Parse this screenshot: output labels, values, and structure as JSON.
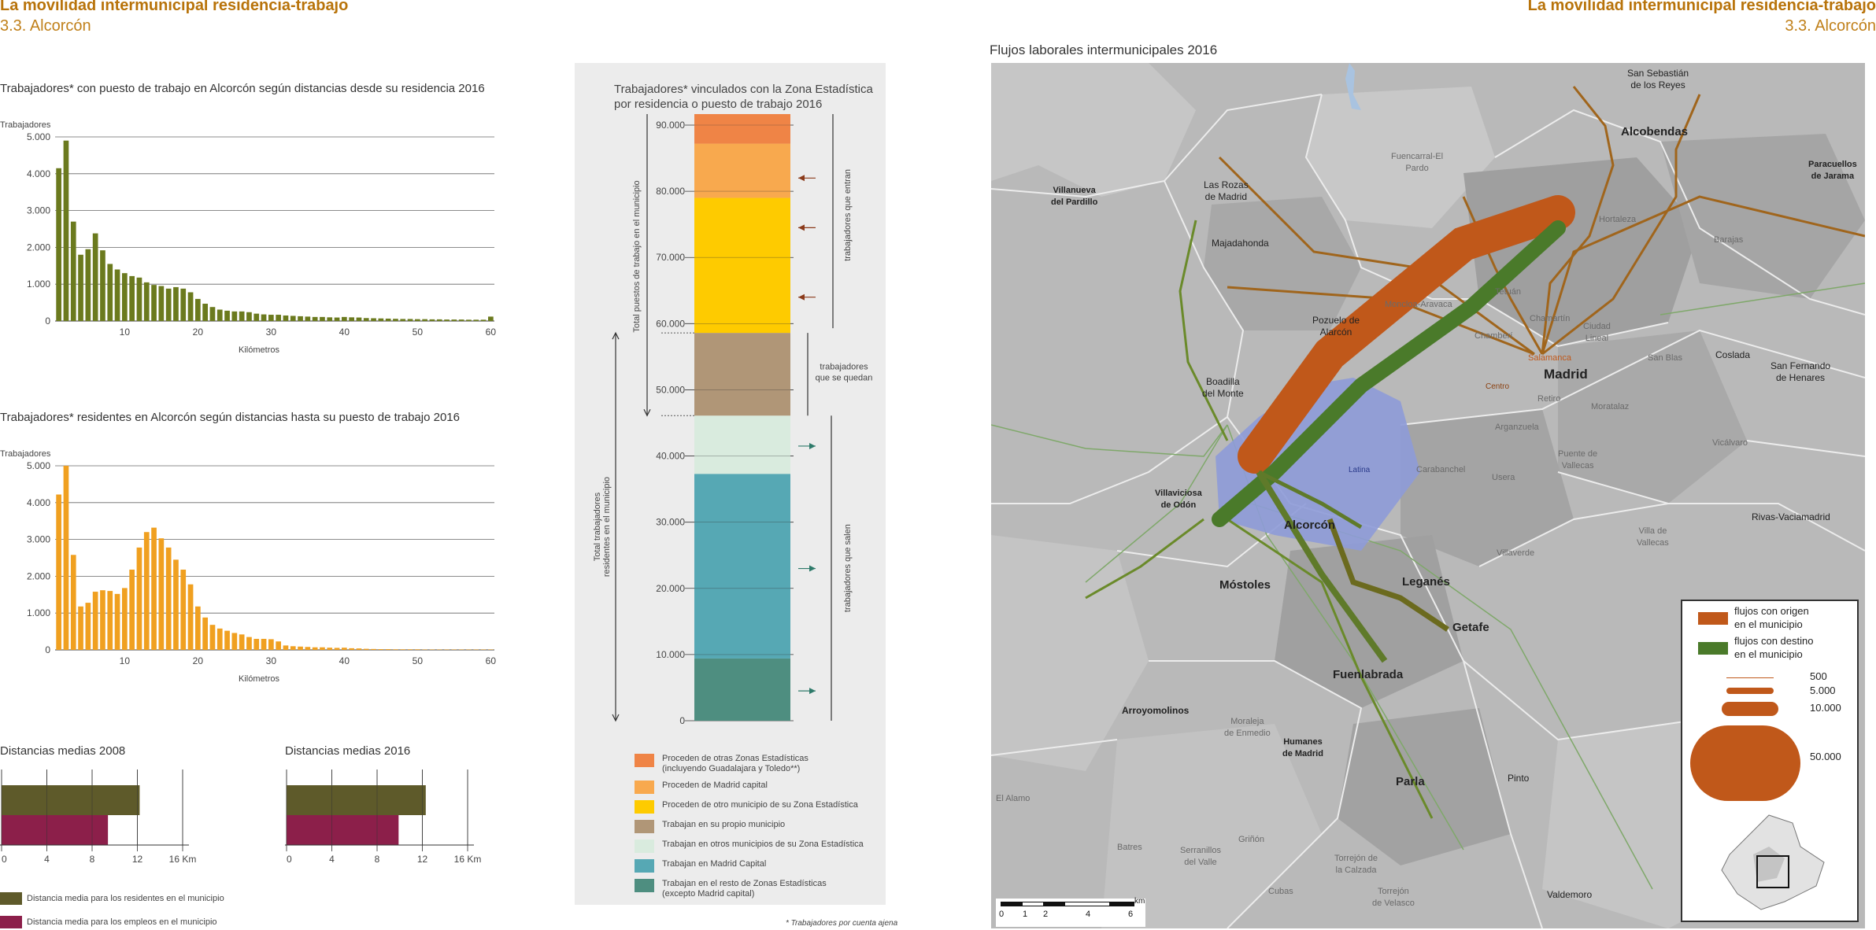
{
  "header": {
    "left_title": "La movilidad intermunicipal residencia-trabajo",
    "left_subtitle": "3.3. Alcorcón",
    "right_title": "La movilidad intermunicipal residencia-trabajo",
    "right_subtitle": "3.3. Alcorcón"
  },
  "colors": {
    "olive": "#6b7a1e",
    "orange": "#f0a020",
    "olive_dark": "#5e5a2a",
    "crimson": "#8c1f4a",
    "flow_origin": "#c0581a",
    "flow_dest": "#4a7a2a"
  },
  "chart_data": [
    {
      "type": "bar",
      "title": "Trabajadores* con puesto de trabajo en Alcorcón según distancias desde su residencia 2016",
      "ylabel": "Trabajadores",
      "xlabel": "Kilómetros",
      "ylim": [
        0,
        5000
      ],
      "yticks": [
        "0",
        "1.000",
        "2.000",
        "3.000",
        "4.000",
        "5.000"
      ],
      "xticks": [
        "10",
        "20",
        "30",
        "40",
        "50",
        "60"
      ],
      "x": [
        1,
        2,
        3,
        4,
        5,
        6,
        7,
        8,
        9,
        10,
        11,
        12,
        13,
        14,
        15,
        16,
        17,
        18,
        19,
        20,
        21,
        22,
        23,
        24,
        25,
        26,
        27,
        28,
        29,
        30,
        31,
        32,
        33,
        34,
        35,
        36,
        37,
        38,
        39,
        40,
        41,
        42,
        43,
        44,
        45,
        46,
        47,
        48,
        49,
        50,
        51,
        52,
        53,
        54,
        55,
        56,
        57,
        58,
        59,
        60
      ],
      "values": [
        4150,
        4900,
        2700,
        1800,
        1950,
        2380,
        1920,
        1550,
        1400,
        1300,
        1220,
        1180,
        1050,
        980,
        950,
        880,
        920,
        880,
        780,
        600,
        470,
        380,
        310,
        280,
        260,
        260,
        240,
        200,
        180,
        170,
        170,
        150,
        140,
        130,
        120,
        110,
        110,
        100,
        95,
        110,
        100,
        95,
        80,
        75,
        70,
        65,
        60,
        55,
        55,
        50,
        50,
        45,
        45,
        40,
        40,
        40,
        35,
        35,
        35,
        120
      ],
      "color": "#6b7a1e"
    },
    {
      "type": "bar",
      "title": "Trabajadores* residentes en Alcorcón según distancias hasta su puesto de trabajo 2016",
      "ylabel": "Trabajadores",
      "xlabel": "Kilómetros",
      "ylim": [
        0,
        5000
      ],
      "yticks": [
        "0",
        "1.000",
        "2.000",
        "3.000",
        "4.000",
        "5.000"
      ],
      "xticks": [
        "10",
        "20",
        "30",
        "40",
        "50",
        "60"
      ],
      "x": [
        1,
        2,
        3,
        4,
        5,
        6,
        7,
        8,
        9,
        10,
        11,
        12,
        13,
        14,
        15,
        16,
        17,
        18,
        19,
        20,
        21,
        22,
        23,
        24,
        25,
        26,
        27,
        28,
        29,
        30,
        31,
        32,
        33,
        34,
        35,
        36,
        37,
        38,
        39,
        40,
        41,
        42,
        43,
        44,
        45,
        46,
        47,
        48,
        49,
        50,
        51,
        52,
        53,
        54,
        55,
        56,
        57,
        58,
        59,
        60
      ],
      "values": [
        4220,
        5000,
        2580,
        1180,
        1280,
        1580,
        1620,
        1600,
        1520,
        1680,
        2180,
        2780,
        3200,
        3320,
        3030,
        2780,
        2450,
        2180,
        1780,
        1180,
        880,
        680,
        580,
        520,
        460,
        420,
        350,
        300,
        300,
        290,
        230,
        120,
        100,
        90,
        80,
        70,
        70,
        60,
        55,
        60,
        45,
        40,
        30,
        25,
        20,
        20,
        15,
        15,
        15,
        15,
        10,
        10,
        10,
        10,
        10,
        10,
        10,
        10,
        10,
        10
      ],
      "color": "#f0a020"
    },
    {
      "type": "bar",
      "title": "Distancias medias 2008",
      "orientation": "horizontal",
      "xlim": [
        0,
        16
      ],
      "xticks": [
        "0",
        "4",
        "8",
        "12",
        "16 Km"
      ],
      "series": [
        {
          "name": "Distancia media para los residentes en el municipio",
          "value": 12.2,
          "color": "#5e5a2a"
        },
        {
          "name": "Distancia media para los empleos en el municipio",
          "value": 9.4,
          "color": "#8c1f4a"
        }
      ]
    },
    {
      "type": "bar",
      "title": "Distancias medias 2016",
      "orientation": "horizontal",
      "xlim": [
        0,
        16
      ],
      "xticks": [
        "0",
        "4",
        "8",
        "12",
        "16 Km"
      ],
      "series": [
        {
          "name": "Distancia media para los residentes en el municipio",
          "value": 12.3,
          "color": "#5e5a2a"
        },
        {
          "name": "Distancia media para los empleos en el municipio",
          "value": 9.9,
          "color": "#8c1f4a"
        }
      ]
    },
    {
      "type": "bar",
      "stacked": true,
      "title": "Trabajadores* vinculados con la Zona Estadística por residencia o puesto de trabajo 2016",
      "ylim": [
        0,
        90000
      ],
      "yticks": [
        "0",
        "10.000",
        "20.000",
        "30.000",
        "40.000",
        "50.000",
        "60.000",
        "70.000",
        "80.000",
        "90.000"
      ],
      "segments": [
        {
          "name": "Trabajan en el resto de Zonas Estadísticas (excepto Madrid capital)",
          "value": 9400,
          "color": "#4e8e80"
        },
        {
          "name": "Trabajan en Madrid Capital",
          "value": 27900,
          "color": "#56a8b4"
        },
        {
          "name": "Trabajan en otros municipios de su Zona Estadística",
          "value": 8800,
          "color": "#d9ebde"
        },
        {
          "name": "Trabajan en su propio municipio",
          "value": 12500,
          "color": "#b09677"
        },
        {
          "name": "Proceden de otro municipio de su Zona Estadística",
          "value": 20400,
          "color": "#fecb00"
        },
        {
          "name": "Proceden de Madrid capital",
          "value": 8200,
          "color": "#f8a94e"
        },
        {
          "name": "Proceden de otras Zonas Estadísticas (incluyendo Guadalajara y Toledo**)",
          "value": 7000,
          "color": "#ef8446"
        }
      ]
    }
  ],
  "distances_legend": {
    "residents": "Distancia media para los residentes en el municipio",
    "jobs": "Distancia media para los empleos en el municipio"
  },
  "stack_panel": {
    "title_line1": "Trabajadores* vinculados con la Zona Estadística",
    "title_line2": "por residencia o puesto de trabajo 2016",
    "label_total_jobs": "Total puestos de trabajo en el municipio",
    "label_total_residents_1": "Total trabajadores",
    "label_total_residents_2": "residentes en el municipio",
    "label_enter": "trabajadores que entran",
    "label_stay_1": "trabajadores",
    "label_stay_2": "que se quedan",
    "label_exit": "trabajadores que salen",
    "legend": [
      {
        "text_1": "Proceden de otras Zonas Estadísticas",
        "text_2": "(incluyendo Guadalajara y Toledo**)",
        "color": "#ef8446"
      },
      {
        "text_1": "Proceden de Madrid capital",
        "text_2": "",
        "color": "#f8a94e"
      },
      {
        "text_1": "Proceden de otro municipio de su Zona Estadística",
        "text_2": "",
        "color": "#fecb00"
      },
      {
        "text_1": "Trabajan en su propio municipio",
        "text_2": "",
        "color": "#b09677"
      },
      {
        "text_1": "Trabajan en otros municipios de su Zona Estadística",
        "text_2": "",
        "color": "#d9ebde"
      },
      {
        "text_1": "Trabajan en Madrid Capital",
        "text_2": "",
        "color": "#56a8b4"
      },
      {
        "text_1": "Trabajan en el resto de Zonas Estadísticas",
        "text_2": "(excepto Madrid capital)",
        "color": "#4e8e80"
      }
    ],
    "footnote": "* Trabajadores por cuenta ajena"
  },
  "map": {
    "title": "Flujos laborales intermunicipales 2016",
    "places": {
      "san_sebastian": "San Sebastián\nde los Reyes",
      "alcobendas": "Alcobendas",
      "paracuellos": "Paracuellos\nde Jarama",
      "villanueva": "Villanueva\ndel Pardillo",
      "las_rozas": "Las Rozas\nde Madrid",
      "fuencarral": "Fuencarral-El\nPardo",
      "hortaleza": "Hortaleza",
      "barajas": "Barajas",
      "majadahonda": "Majadahonda",
      "moncloa": "Moncloa-Aravaca",
      "tetuan": "Tetuán",
      "chamartin": "Chamartín",
      "ciudad_lineal": "Ciudad\nLineal",
      "chamberi": "Chamberí",
      "pozuelo": "Pozuelo de\nAlarcón",
      "salamanca": "Salamanca",
      "centro": "Centro",
      "madrid": "Madrid",
      "san_blas": "San Blas",
      "coslada": "Coslada",
      "san_fernando": "San Fernando\nde Henares",
      "boadilla": "Boadilla\ndel Monte",
      "retiro": "Retiro",
      "moratalaz": "Moratalaz",
      "arganzuela": "Arganzuela",
      "vicalvaro": "Vicálvaro",
      "latina": "Latina",
      "carabanchel": "Carabanchel",
      "usera": "Usera",
      "puente_vallecas": "Puente de\nVallecas",
      "villaviciosa": "Villaviciosa\nde Odón",
      "alcorcon": "Alcorcón",
      "villa_vallecas": "Villa de\nVallecas",
      "rivas": "Rivas-Vaciamadrid",
      "villaverde": "Villaverde",
      "mostoles": "Móstoles",
      "leganes": "Leganés",
      "getafe": "Getafe",
      "fuenlabrada": "Fuenlabrada",
      "arroyomolinos": "Arroyomolinos",
      "moraleja": "Moraleja\nde Enmedio",
      "humanes": "Humanes\nde Madrid",
      "parla": "Parla",
      "pinto": "Pinto",
      "el_alamo": "El Alamo",
      "batres": "Batres",
      "serranillos": "Serranillos\ndel Valle",
      "grinon": "Griñón",
      "torrejon_calzada": "Torrejón de\nla Calzada",
      "cubas": "Cubas",
      "torrejon_velasco": "Torrejón\nde Velasco",
      "valdemoro": "Valdemoro"
    },
    "scale": {
      "labels": [
        "0",
        "1",
        "2",
        "4",
        "6"
      ],
      "unit": "km"
    },
    "legend": {
      "origin_1": "flujos con origen",
      "origin_2": "en el municipio",
      "dest_1": "flujos con destino",
      "dest_2": "en el municipio",
      "s500": "500",
      "s5000": "5.000",
      "s10000": "10.000",
      "s50000": "50.000"
    }
  }
}
